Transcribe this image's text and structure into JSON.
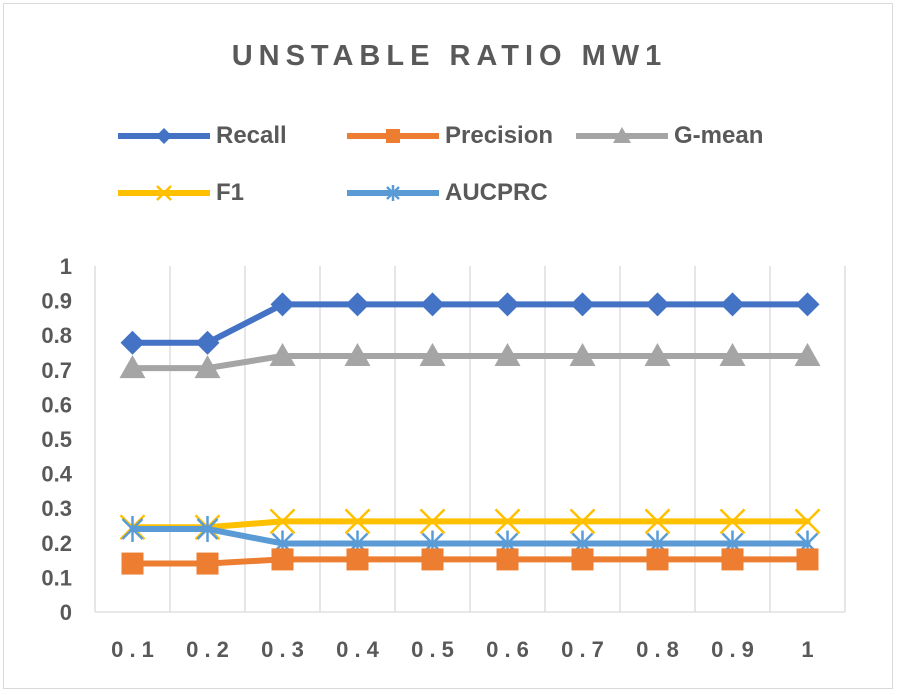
{
  "chart_data": {
    "type": "line",
    "title": "UNSTABLE RATIO MW1",
    "xlabel": "",
    "ylabel": "",
    "categories": [
      "0.1",
      "0.2",
      "0.3",
      "0.4",
      "0.5",
      "0.6",
      "0.7",
      "0.8",
      "0.9",
      "1"
    ],
    "xtick_labels": [
      "0 . 1",
      "0 . 2",
      "0 . 3",
      "0 . 4",
      "0 . 5",
      "0 . 6",
      "0 . 7",
      "0 . 8",
      "0 . 9",
      "1"
    ],
    "ylim": [
      0,
      1
    ],
    "yticks": [
      0,
      0.1,
      0.2,
      0.3,
      0.4,
      0.5,
      0.6,
      0.7,
      0.8,
      0.9,
      1
    ],
    "ytick_labels": [
      "0",
      "0.1",
      "0.2",
      "0.3",
      "0.4",
      "0.5",
      "0.6",
      "0.7",
      "0.8",
      "0.9",
      "1"
    ],
    "grid": "vertical",
    "legend_position": "top",
    "series": [
      {
        "name": "Recall",
        "color": "#4472c4",
        "marker": "diamond",
        "values": [
          0.778,
          0.778,
          0.889,
          0.889,
          0.889,
          0.889,
          0.889,
          0.889,
          0.889,
          0.889
        ]
      },
      {
        "name": "Precision",
        "color": "#ed7d31",
        "marker": "square",
        "values": [
          0.14,
          0.14,
          0.152,
          0.152,
          0.152,
          0.152,
          0.152,
          0.152,
          0.152,
          0.152
        ]
      },
      {
        "name": "G-mean",
        "color": "#a5a5a5",
        "marker": "triangle",
        "values": [
          0.705,
          0.705,
          0.74,
          0.74,
          0.74,
          0.74,
          0.74,
          0.74,
          0.74,
          0.74
        ]
      },
      {
        "name": "F1",
        "color": "#ffc000",
        "marker": "x",
        "values": [
          0.245,
          0.245,
          0.262,
          0.262,
          0.262,
          0.262,
          0.262,
          0.262,
          0.262,
          0.262
        ]
      },
      {
        "name": "AUCPRC",
        "color": "#5b9bd5",
        "marker": "star",
        "values": [
          0.24,
          0.24,
          0.198,
          0.198,
          0.198,
          0.198,
          0.198,
          0.198,
          0.198,
          0.198
        ]
      }
    ]
  }
}
